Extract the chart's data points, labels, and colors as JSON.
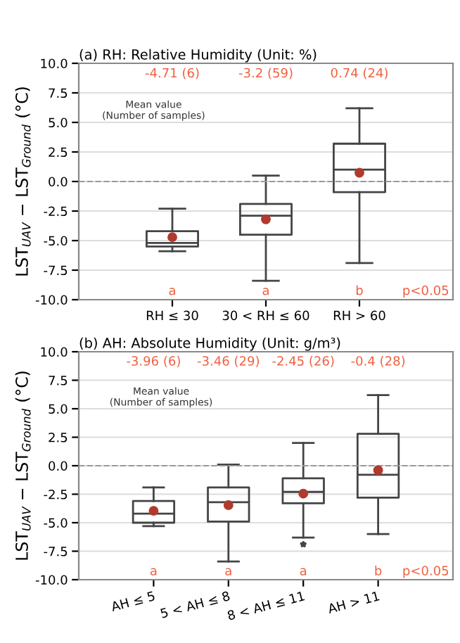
{
  "chart_data": [
    {
      "type": "box",
      "title": "(a) RH: Relative Humidity (Unit: %)",
      "ylabel": "LST$_{UAV}$ − LST$_{Ground}$ (°C)",
      "categories": [
        "RH ≤ 30",
        "30 < RH ≤ 60",
        "RH > 60"
      ],
      "boxes": [
        {
          "low": -5.9,
          "q1": -5.5,
          "median": -5.2,
          "q3": -4.2,
          "high": -2.3,
          "mean": -4.71
        },
        {
          "low": -8.4,
          "q1": -4.5,
          "median": -2.9,
          "q3": -1.9,
          "high": 0.5,
          "mean": -3.2
        },
        {
          "low": -6.9,
          "q1": -0.9,
          "median": 1.0,
          "q3": 3.2,
          "high": 6.2,
          "mean": 0.74
        }
      ],
      "ylim": [
        -10,
        10
      ],
      "yticks": [
        {
          "value": -10,
          "label": "-10.0"
        },
        {
          "value": -7.5,
          "label": "-7.5"
        },
        {
          "value": -5,
          "label": "-5.0"
        },
        {
          "value": -2.5,
          "label": "-2.5"
        },
        {
          "value": 0,
          "label": "0.0"
        },
        {
          "value": 2.5,
          "label": "2.5"
        },
        {
          "value": 5,
          "label": "5.0"
        },
        {
          "value": 7.5,
          "label": "7.5"
        },
        {
          "value": 10,
          "label": "10.0"
        }
      ],
      "grid": "y",
      "ref_lines": [
        {
          "axis": "y",
          "value": 0,
          "color": "#999999",
          "line_style": "dashed"
        }
      ],
      "annotations": [
        "-4.71 (6)",
        "-3.2 (59)",
        "0.74 (24)",
        "Mean value\n(Number of samples)",
        "a",
        "a",
        "b",
        "p<0.05"
      ]
    },
    {
      "type": "box",
      "title": "(b) AH: Absolute Humidity (Unit: g/m³)",
      "ylabel": "LST$_{UAV}$ − LST$_{Ground}$ (°C)",
      "categories": [
        "AH ≤ 5",
        "5 < AH ≤ 8",
        "8 < AH ≤ 11",
        "AH > 11"
      ],
      "boxes": [
        {
          "low": -5.3,
          "q1": -5.0,
          "median": -4.2,
          "q3": -3.1,
          "high": -1.9,
          "mean": -3.96
        },
        {
          "low": -8.4,
          "q1": -4.9,
          "median": -3.2,
          "q3": -1.9,
          "high": 0.1,
          "mean": -3.46
        },
        {
          "low": -6.3,
          "q1": -3.3,
          "median": -2.3,
          "q3": -1.1,
          "high": 2.0,
          "mean": -2.45,
          "outliers": [
            -6.9
          ]
        },
        {
          "low": -6.0,
          "q1": -2.8,
          "median": -0.8,
          "q3": 2.8,
          "high": 6.2,
          "mean": -0.4
        }
      ],
      "ylim": [
        -10,
        10
      ],
      "yticks": [
        {
          "value": -10,
          "label": "-10.0"
        },
        {
          "value": -7.5,
          "label": "-7.5"
        },
        {
          "value": -5,
          "label": "-5.0"
        },
        {
          "value": -2.5,
          "label": "-2.5"
        },
        {
          "value": 0,
          "label": "0.0"
        },
        {
          "value": 2.5,
          "label": "2.5"
        },
        {
          "value": 5,
          "label": "5.0"
        },
        {
          "value": 7.5,
          "label": "7.5"
        },
        {
          "value": 10,
          "label": "10.0"
        }
      ],
      "grid": "y",
      "ref_lines": [
        {
          "axis": "y",
          "value": 0,
          "color": "#999999",
          "line_style": "dashed"
        }
      ],
      "annotations": [
        "-3.96 (6)",
        "-3.46 (29)",
        "-2.45 (26)",
        "-0.4 (28)",
        "Mean value\n(Number of samples)",
        "a",
        "a",
        "a",
        "b",
        "p<0.05"
      ]
    }
  ]
}
